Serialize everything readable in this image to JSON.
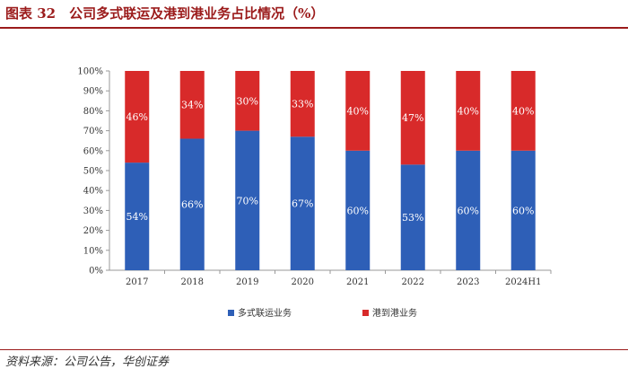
{
  "figure": {
    "title": "图表 32　公司多式联运及港到港业务占比情况（%）",
    "source": "资料来源：公司公告，华创证券"
  },
  "colors": {
    "series_1": "#2e5fb7",
    "series_2": "#d82a2a",
    "title_accent": "#9b1b1b"
  },
  "chart_data": {
    "type": "bar",
    "stacked": true,
    "percent": true,
    "title": "公司多式联运及港到港业务占比情况（%）",
    "categories": [
      "2017",
      "2018",
      "2019",
      "2020",
      "2021",
      "2022",
      "2023",
      "2024H1"
    ],
    "series": [
      {
        "name": "多式联运业务",
        "values": [
          54,
          66,
          70,
          67,
          60,
          53,
          60,
          60
        ],
        "labels": [
          "54%",
          "66%",
          "70%",
          "67%",
          "60%",
          "53%",
          "60%",
          "60%"
        ]
      },
      {
        "name": "港到港业务",
        "values": [
          46,
          34,
          30,
          33,
          40,
          47,
          40,
          40
        ],
        "labels": [
          "46%",
          "34%",
          "30%",
          "33%",
          "40%",
          "47%",
          "40%",
          "40%"
        ]
      }
    ],
    "ylim": [
      0,
      100
    ],
    "yticks": [
      "0%",
      "10%",
      "20%",
      "30%",
      "40%",
      "50%",
      "60%",
      "70%",
      "80%",
      "90%",
      "100%"
    ],
    "xlabel": "",
    "ylabel": "",
    "legend_position": "bottom"
  }
}
